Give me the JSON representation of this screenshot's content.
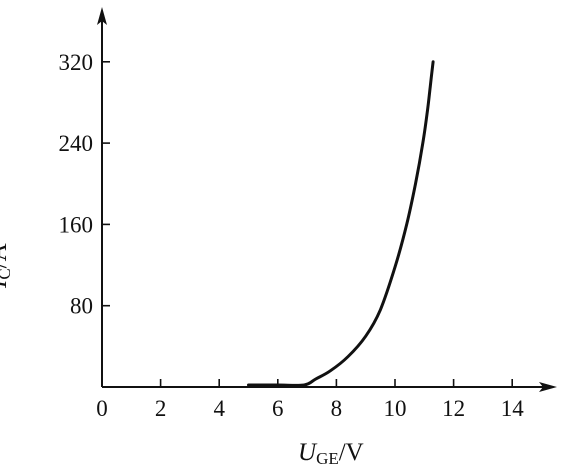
{
  "chart_data": {
    "type": "line",
    "xlabel": {
      "symbol": "U",
      "subscript": "GE",
      "unit": "/V"
    },
    "ylabel": {
      "symbol": "I",
      "subscript": "C",
      "unit": "/A"
    },
    "x_ticks": [
      0,
      2,
      4,
      6,
      8,
      10,
      12,
      14
    ],
    "y_ticks": [
      80,
      160,
      240,
      320
    ],
    "origin_label": "0",
    "xlim": [
      0,
      15.5
    ],
    "ylim": [
      0,
      360
    ],
    "grid": false,
    "series": [
      {
        "x": [
          5.0,
          6.0,
          6.9,
          7.3,
          7.8,
          8.4,
          9.0,
          9.5,
          10.0,
          10.4,
          10.7,
          10.95,
          11.1,
          11.2,
          11.3
        ],
        "y": [
          2,
          2,
          2,
          8,
          16,
          30,
          50,
          76,
          118,
          160,
          200,
          240,
          270,
          295,
          320
        ]
      }
    ],
    "colors": {
      "axes": "#111111",
      "line": "#111111"
    }
  }
}
